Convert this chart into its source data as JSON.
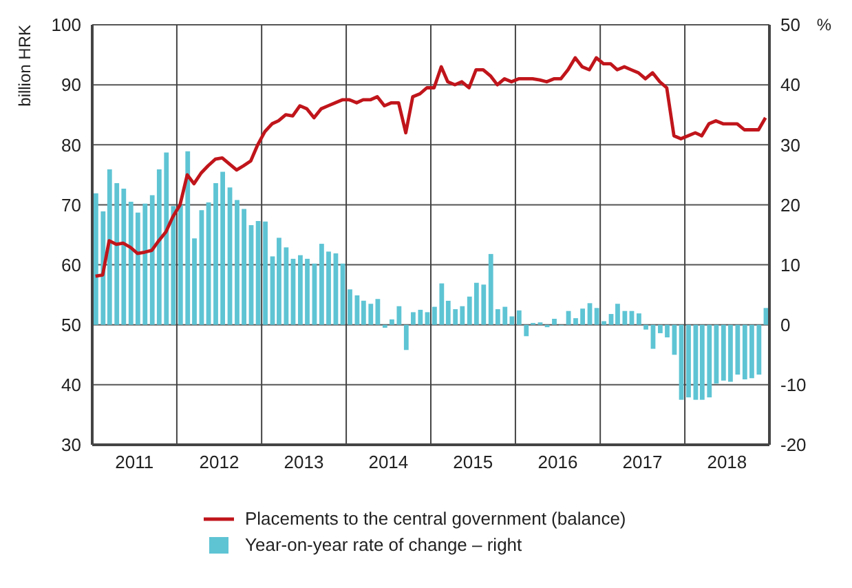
{
  "chart_data": {
    "type": "bar",
    "ylabel": "billion HRK",
    "y2label": "%",
    "x": [
      "2011-01-15",
      "2011-02-15",
      "2011-03-15",
      "2011-04-15",
      "2011-05-15",
      "2011-06-15",
      "2011-07-15",
      "2011-08-15",
      "2011-09-15",
      "2011-10-15",
      "2011-11-15",
      "2011-12-15",
      "2012-01-15",
      "2012-02-15",
      "2012-03-15",
      "2012-04-15",
      "2012-05-15",
      "2012-06-15",
      "2012-07-15",
      "2012-08-15",
      "2012-09-15",
      "2012-10-15",
      "2012-11-15",
      "2012-12-15",
      "2013-01-15",
      "2013-02-15",
      "2013-03-15",
      "2013-04-15",
      "2013-05-15",
      "2013-06-15",
      "2013-07-15",
      "2013-08-15",
      "2013-09-15",
      "2013-10-15",
      "2013-11-15",
      "2013-12-15",
      "2014-01-15",
      "2014-02-15",
      "2014-03-15",
      "2014-04-15",
      "2014-05-15",
      "2014-06-15",
      "2014-07-15",
      "2014-08-15",
      "2014-09-15",
      "2014-10-15",
      "2014-11-15",
      "2014-12-15",
      "2015-01-15",
      "2015-02-15",
      "2015-03-15",
      "2015-04-15",
      "2015-05-15",
      "2015-06-15",
      "2015-07-15",
      "2015-08-15",
      "2015-09-15",
      "2015-10-15",
      "2015-11-15",
      "2015-12-15",
      "2016-01-15",
      "2016-02-15",
      "2016-03-15",
      "2016-04-15",
      "2016-05-15",
      "2016-06-15",
      "2016-07-15",
      "2016-08-15",
      "2016-09-15",
      "2016-10-15",
      "2016-11-15",
      "2016-12-15",
      "2017-01-15",
      "2017-02-15",
      "2017-03-15",
      "2017-04-15",
      "2017-05-15",
      "2017-06-15",
      "2017-07-15",
      "2017-08-15",
      "2017-09-15",
      "2017-10-15",
      "2017-11-15",
      "2017-12-15",
      "2018-01-15",
      "2018-02-15",
      "2018-03-15",
      "2018-04-15",
      "2018-05-15",
      "2018-06-15",
      "2018-07-15",
      "2018-08-15",
      "2018-09-15",
      "2018-10-15",
      "2018-11-15",
      "2018-12-15"
    ],
    "series": [
      {
        "name": "Placements to the central government (balance)",
        "type": "line",
        "color": "#c0151b",
        "values": [
          58.1,
          58.3,
          64.0,
          63.4,
          63.6,
          62.9,
          61.9,
          62.1,
          62.4,
          64.0,
          65.5,
          68.0,
          70.0,
          75.0,
          73.5,
          75.3,
          76.5,
          77.6,
          77.8,
          76.8,
          75.8,
          76.5,
          77.3,
          80.0,
          82.2,
          83.5,
          84.0,
          85.0,
          84.8,
          86.5,
          86.0,
          84.5,
          86.0,
          86.5,
          87.0,
          87.5,
          87.5,
          87.0,
          87.5,
          87.5,
          88.0,
          86.5,
          87.0,
          87.0,
          82.0,
          88.0,
          88.5,
          89.5,
          89.5,
          93.0,
          90.5,
          90.0,
          90.5,
          89.5,
          92.5,
          92.5,
          91.5,
          90.0,
          91.0,
          90.5,
          91.0,
          91.0,
          91.0,
          90.8,
          90.5,
          91.0,
          91.0,
          92.5,
          94.5,
          93.0,
          92.5,
          94.5,
          93.5,
          93.5,
          92.5,
          93.0,
          92.5,
          92.0,
          91.0,
          92.0,
          90.5,
          89.5,
          81.5,
          81.0,
          81.5,
          82.0,
          81.5,
          83.5,
          84.0,
          83.5,
          83.5,
          83.5,
          82.5,
          82.5,
          82.5,
          84.5
        ]
      },
      {
        "name": "Year-on-year rate of change – right",
        "axis": "y2",
        "color": "#5ec4d4",
        "values": [
          21.9,
          18.9,
          25.9,
          23.6,
          22.7,
          20.5,
          18.7,
          20.2,
          21.6,
          25.9,
          28.7,
          19.8,
          20.0,
          28.9,
          14.4,
          19.1,
          20.4,
          23.6,
          25.5,
          22.9,
          20.8,
          19.3,
          16.6,
          17.3,
          17.2,
          11.4,
          14.5,
          12.9,
          11.0,
          11.6,
          11.0,
          10.2,
          13.5,
          12.2,
          11.9,
          10.2,
          5.9,
          4.9,
          4.0,
          3.5,
          4.3,
          -0.5,
          0.9,
          3.1,
          -4.2,
          2.1,
          2.5,
          2.1,
          3.0,
          6.9,
          4.0,
          2.6,
          3.1,
          4.7,
          7.0,
          6.7,
          11.8,
          2.6,
          3.0,
          1.4,
          2.4,
          -1.9,
          0.3,
          0.4,
          -0.4,
          1.0,
          -0.1,
          2.3,
          1.1,
          2.7,
          3.6,
          2.8,
          0.6,
          1.8,
          3.5,
          2.3,
          2.3,
          1.9,
          -0.8,
          -4.0,
          -1.4,
          -2.1,
          -5.0,
          -12.5,
          -12.1,
          -12.5,
          -12.5,
          -12.1,
          -9.8,
          -9.3,
          -9.5,
          -8.3,
          -9.1,
          -8.9,
          -8.3,
          2.8
        ]
      }
    ],
    "xlim": [
      "2011-01-01",
      "2019-01-01"
    ],
    "xticks": [
      {
        "value": "2011-07-02",
        "label": "2011"
      },
      {
        "value": "2012-01-01",
        "label": null
      },
      {
        "value": "2012-07-02",
        "label": "2012"
      },
      {
        "value": "2013-01-01",
        "label": null
      },
      {
        "value": "2013-07-02",
        "label": "2013"
      },
      {
        "value": "2014-01-01",
        "label": null
      },
      {
        "value": "2014-07-02",
        "label": "2014"
      },
      {
        "value": "2015-01-01",
        "label": null
      },
      {
        "value": "2015-07-02",
        "label": "2015"
      },
      {
        "value": "2016-01-01",
        "label": null
      },
      {
        "value": "2016-07-02",
        "label": "2016"
      },
      {
        "value": "2017-01-01",
        "label": null
      },
      {
        "value": "2017-07-02",
        "label": "2017"
      },
      {
        "value": "2018-01-01",
        "label": null
      },
      {
        "value": "2018-07-02",
        "label": "2018"
      }
    ],
    "ylim": [
      30,
      100
    ],
    "yticks": [
      30,
      40,
      50,
      60,
      70,
      80,
      90,
      100
    ],
    "y2lim": [
      -20,
      50
    ],
    "y2ticks": [
      -20,
      -10,
      0,
      10,
      20,
      30,
      40,
      50
    ],
    "grid": true,
    "legend": "bottom"
  }
}
